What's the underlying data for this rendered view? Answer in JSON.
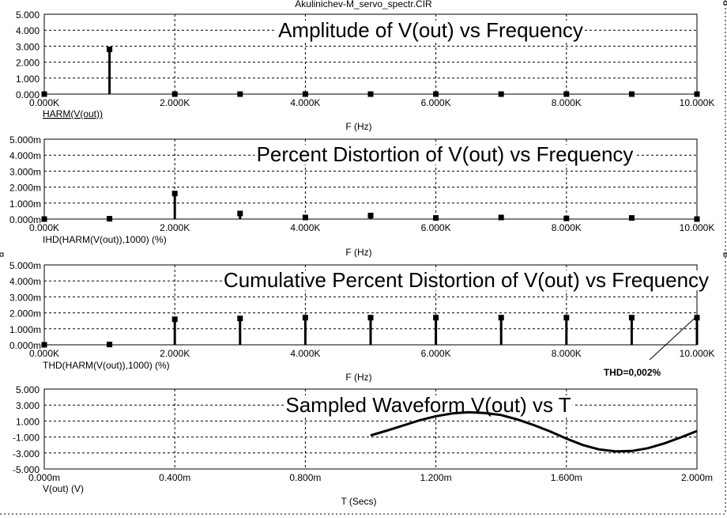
{
  "window_title": "Akulinichev-M_servo_spectr.CIR",
  "colors": {
    "background": "#ffffff",
    "ink": "#000000"
  },
  "chart_data": [
    {
      "type": "bar",
      "title": "Amplitude of V(out) vs Frequency",
      "trace_label": "HARM(V(out))",
      "xlabel": "F (Hz)",
      "x_ticks": [
        "0.000K",
        "2.000K",
        "4.000K",
        "6.000K",
        "8.000K",
        "10.000K"
      ],
      "y_ticks": [
        "0.000",
        "1.000",
        "2.000",
        "3.000",
        "4.000",
        "5.000"
      ],
      "xlim": [
        0,
        10000
      ],
      "ylim": [
        0,
        5
      ],
      "x": [
        0,
        1000,
        2000,
        3000,
        4000,
        5000,
        6000,
        7000,
        8000,
        9000,
        10000
      ],
      "values": [
        0,
        2.8,
        0,
        0,
        0,
        0,
        0,
        0,
        0,
        0,
        0
      ],
      "grid": true
    },
    {
      "type": "bar",
      "title": "Percent Distortion of V(out) vs Frequency",
      "trace_label": "IHD(HARM(V(out)),1000) (%)",
      "xlabel": "F (Hz)",
      "x_ticks": [
        "0.000K",
        "2.000K",
        "4.000K",
        "6.000K",
        "8.000K",
        "10.000K"
      ],
      "y_ticks": [
        "0.000m",
        "1.000m",
        "2.000m",
        "3.000m",
        "4.000m",
        "5.000m"
      ],
      "xlim": [
        0,
        10000
      ],
      "ylim": [
        0,
        0.005
      ],
      "x": [
        0,
        1000,
        2000,
        3000,
        4000,
        5000,
        6000,
        7000,
        8000,
        9000,
        10000
      ],
      "values": [
        0,
        2e-05,
        0.0016,
        0.00035,
        0.0001,
        0.00022,
        7e-05,
        0.0001,
        4e-05,
        7e-05,
        0
      ],
      "grid": true
    },
    {
      "type": "bar",
      "title": "Cumulative Percent Distortion of V(out) vs Frequency",
      "trace_label": "THD(HARM(V(out)),1000) (%)",
      "xlabel": "F (Hz)",
      "x_ticks": [
        "0.000K",
        "2.000K",
        "4.000K",
        "6.000K",
        "8.000K",
        "10.000K"
      ],
      "y_ticks": [
        "0.000m",
        "1.000m",
        "2.000m",
        "3.000m",
        "4.000m",
        "5.000m"
      ],
      "xlim": [
        0,
        10000
      ],
      "ylim": [
        0,
        0.005
      ],
      "x": [
        0,
        1000,
        2000,
        3000,
        4000,
        5000,
        6000,
        7000,
        8000,
        9000,
        10000
      ],
      "values": [
        0,
        2e-05,
        0.0016,
        0.00165,
        0.0017,
        0.0017,
        0.0017,
        0.0017,
        0.0017,
        0.0017,
        0.0017
      ],
      "annotation": "THD=0,002%",
      "grid": true
    },
    {
      "type": "line",
      "title": "Sampled Waveform  V(out) vs T",
      "trace_label": "V(out) (V)",
      "xlabel": "T (Secs)",
      "x_ticks": [
        "0.000m",
        "0.400m",
        "0.800m",
        "1.200m",
        "1.600m",
        "2.000m"
      ],
      "y_ticks": [
        "-5.000",
        "-3.000",
        "-1.000",
        "1.000",
        "3.000",
        "5.000"
      ],
      "xlim": [
        0,
        0.002
      ],
      "ylim": [
        -5,
        5
      ],
      "series": [
        {
          "x": [
            0.001,
            0.00105,
            0.0011,
            0.00115,
            0.0012,
            0.00125,
            0.0013,
            0.00135,
            0.0014,
            0.00145,
            0.0015,
            0.00155,
            0.0016,
            0.00165,
            0.0017,
            0.00175,
            0.0018,
            0.00185,
            0.0019,
            0.00195,
            0.002
          ],
          "values": [
            -0.8,
            -0.2,
            0.45,
            1.1,
            1.6,
            1.95,
            2.1,
            2.0,
            1.75,
            1.2,
            0.5,
            -0.3,
            -1.2,
            -2.0,
            -2.55,
            -2.8,
            -2.75,
            -2.4,
            -1.8,
            -1.05,
            -0.25
          ]
        }
      ],
      "grid": true
    }
  ]
}
